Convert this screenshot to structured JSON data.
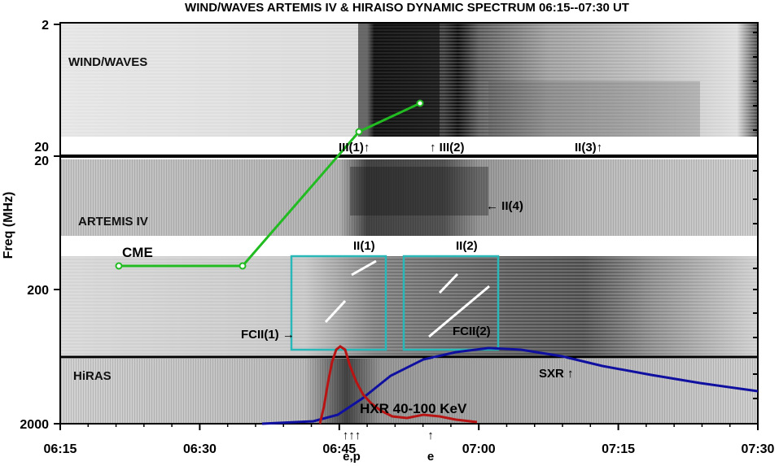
{
  "chart_data": {
    "type": "heatmap",
    "title": "WIND/WAVES ARTEMIS IV & HIRAISO DYNAMIC SPECTRUM 06:15--07:30 UT",
    "ylabel": "Freq (MHz)",
    "xlabel": "",
    "x_ticks": [
      "06:15",
      "06:30",
      "06:45",
      "07:00",
      "07:15",
      "07:30"
    ],
    "y_ticks": [
      "2",
      "20",
      "20",
      "200",
      "200",
      "2000"
    ],
    "panels": [
      {
        "name": "WIND/WAVES"
      },
      {
        "name": "ARTEMIS IV"
      },
      {
        "name": "HiRAS"
      }
    ],
    "overlays": [
      {
        "name": "CME",
        "color": "#22bb22"
      },
      {
        "name": "SXR",
        "color": "#1010a0"
      },
      {
        "name": "HXR 40-100 KeV",
        "color": "#b81414"
      }
    ],
    "annotations": [
      {
        "text": "III(1)↑"
      },
      {
        "text": "↑ III(2)"
      },
      {
        "text": "II(3)↑"
      },
      {
        "text": "← II(4)"
      },
      {
        "text": "II(1)"
      },
      {
        "text": "II(2)"
      },
      {
        "text": "FCII(1) →"
      },
      {
        "text": "FCII(2)"
      },
      {
        "text": "SXR ↑"
      },
      {
        "text": "HXR 40-100 KeV"
      }
    ],
    "bottom_markers": [
      "e,p",
      "e"
    ],
    "box_color": "#2ab7b7"
  }
}
